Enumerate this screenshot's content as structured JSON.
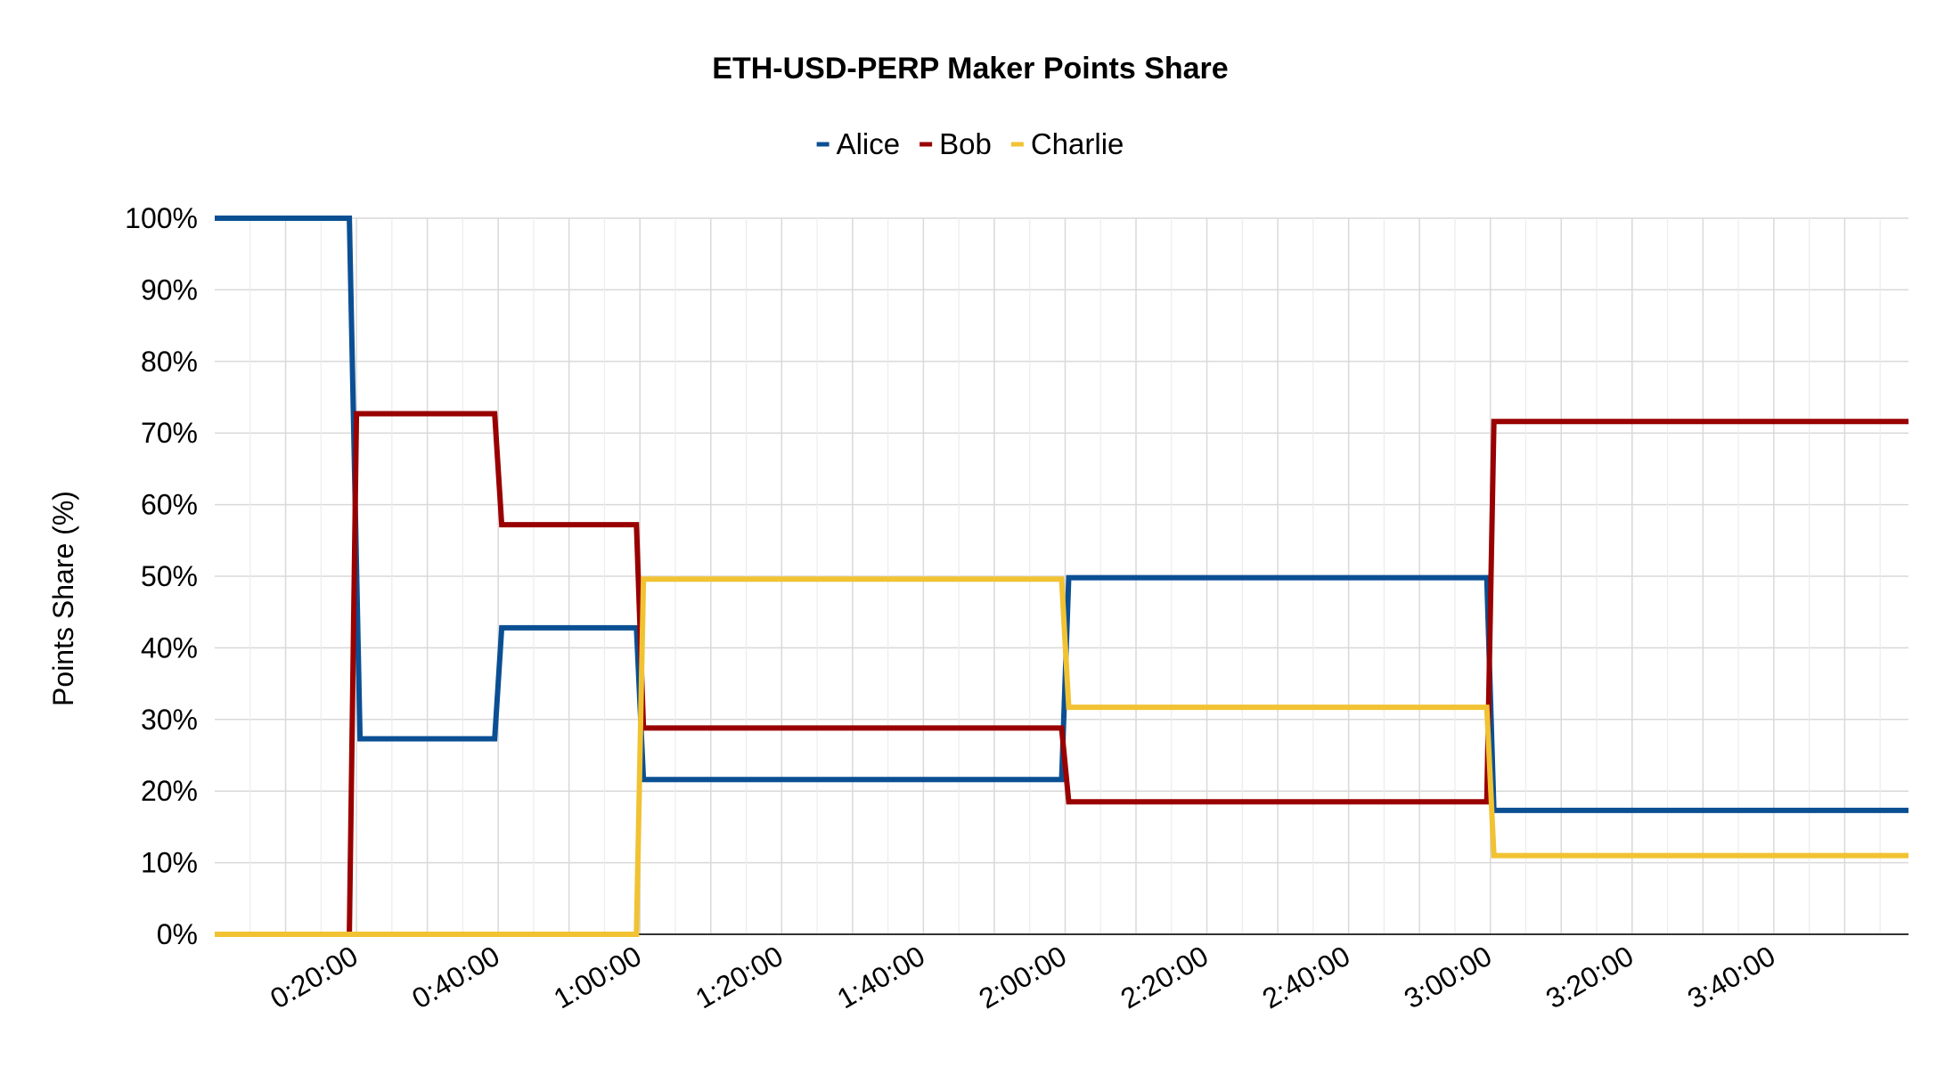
{
  "chart_data": {
    "type": "line",
    "title": "ETH-USD-PERP Maker Points Share",
    "ylabel": "Points Share (%)",
    "xlabel": "",
    "ylim": [
      0,
      100
    ],
    "yticks": [
      "0%",
      "10%",
      "20%",
      "30%",
      "40%",
      "50%",
      "60%",
      "70%",
      "80%",
      "90%",
      "100%"
    ],
    "xticks": [
      {
        "label": "0:20:00",
        "minutes": 20
      },
      {
        "label": "0:40:00",
        "minutes": 40
      },
      {
        "label": "1:00:00",
        "minutes": 60
      },
      {
        "label": "1:20:00",
        "minutes": 80
      },
      {
        "label": "1:40:00",
        "minutes": 100
      },
      {
        "label": "2:00:00",
        "minutes": 120
      },
      {
        "label": "2:20:00",
        "minutes": 140
      },
      {
        "label": "2:40:00",
        "minutes": 160
      },
      {
        "label": "3:00:00",
        "minutes": 180
      },
      {
        "label": "3:20:00",
        "minutes": 200
      },
      {
        "label": "3:40:00",
        "minutes": 220
      }
    ],
    "xlim": [
      0,
      239
    ],
    "grid": true,
    "legend_position": "top-center",
    "series": [
      {
        "name": "Alice",
        "color": "#0b4f93",
        "points": [
          [
            0,
            100
          ],
          [
            19,
            100
          ],
          [
            20.5,
            27.3
          ],
          [
            39.5,
            27.3
          ],
          [
            40.5,
            42.8
          ],
          [
            59.5,
            42.8
          ],
          [
            60.5,
            21.6
          ],
          [
            119.5,
            21.6
          ],
          [
            120.5,
            49.8
          ],
          [
            179.5,
            49.8
          ],
          [
            180.5,
            17.3
          ],
          [
            239,
            17.3
          ]
        ]
      },
      {
        "name": "Bob",
        "color": "#990000",
        "points": [
          [
            0,
            0
          ],
          [
            19,
            0
          ],
          [
            20,
            72.7
          ],
          [
            39.5,
            72.7
          ],
          [
            40.5,
            57.2
          ],
          [
            59.5,
            57.2
          ],
          [
            60.5,
            28.8
          ],
          [
            119.5,
            28.8
          ],
          [
            120.5,
            18.5
          ],
          [
            179.5,
            18.5
          ],
          [
            180.5,
            71.6
          ],
          [
            239,
            71.6
          ]
        ]
      },
      {
        "name": "Charlie",
        "color": "#f1c232",
        "points": [
          [
            0,
            0
          ],
          [
            59.5,
            0
          ],
          [
            60.5,
            49.6
          ],
          [
            119.5,
            49.6
          ],
          [
            120.5,
            31.7
          ],
          [
            179.5,
            31.7
          ],
          [
            180.5,
            11.0
          ],
          [
            239,
            11.0
          ]
        ]
      }
    ]
  }
}
